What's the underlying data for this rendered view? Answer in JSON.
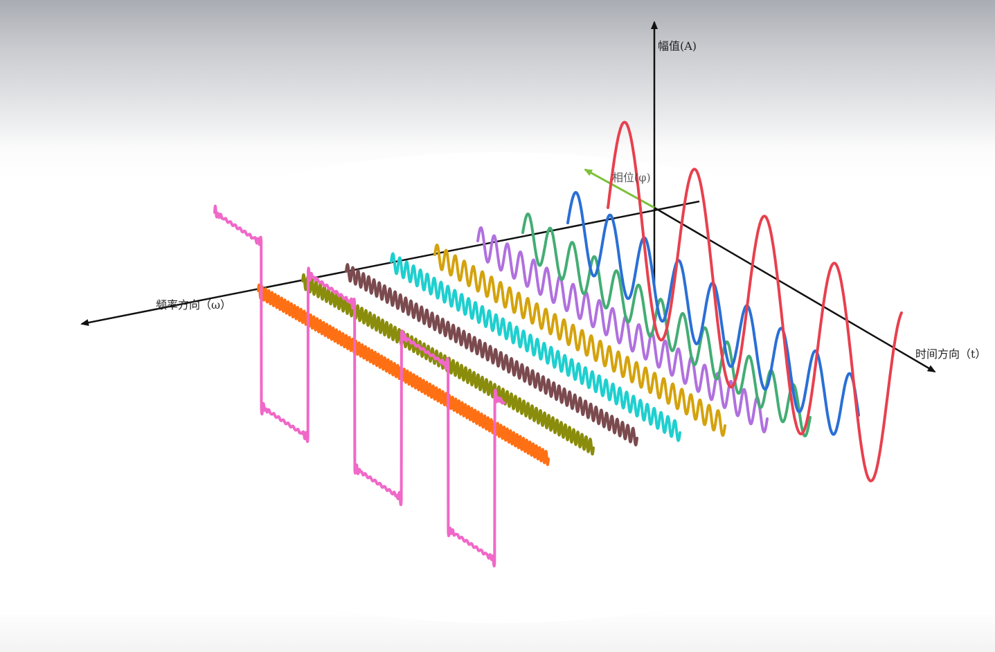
{
  "axes": {
    "amplitude_label": "幅值(A)",
    "frequency_label": "频率方向（ω）",
    "time_label": "时间方向（t）",
    "phase_label": "相位(φ)"
  },
  "colors": {
    "axis": "#111111",
    "phase_axis": "#7dc13a",
    "square_wave": "#f068c8",
    "components": [
      "#e8404e",
      "#2a6fd6",
      "#43ad74",
      "#b070de",
      "#d4a20c",
      "#1fcfcf",
      "#7a4a4e",
      "#8a8c0c",
      "#ff7014"
    ]
  },
  "square_wave": {
    "name": "pink-square-wave",
    "cycles": 3.1
  },
  "components": [
    {
      "name": "red-sine-1",
      "color_index": 0,
      "cycles": 4.2,
      "amplitude": 1.0
    },
    {
      "name": "blue-sine-3",
      "color_index": 1,
      "cycles": 8.5,
      "amplitude": 0.45
    },
    {
      "name": "green-sine-5",
      "color_index": 2,
      "cycles": 13,
      "amplitude": 0.32
    },
    {
      "name": "purple-sine-7",
      "color_index": 3,
      "cycles": 22,
      "amplitude": 0.24
    },
    {
      "name": "gold-sine-9",
      "color_index": 4,
      "cycles": 32,
      "amplitude": 0.18
    },
    {
      "name": "cyan-sine-11",
      "color_index": 5,
      "cycles": 42,
      "amplitude": 0.15
    },
    {
      "name": "brown-sine-13",
      "color_index": 6,
      "cycles": 55,
      "amplitude": 0.13
    },
    {
      "name": "olive-sine-15",
      "color_index": 7,
      "cycles": 70,
      "amplitude": 0.12
    },
    {
      "name": "orange-sine-17",
      "color_index": 8,
      "cycles": 90,
      "amplitude": 0.11
    }
  ]
}
